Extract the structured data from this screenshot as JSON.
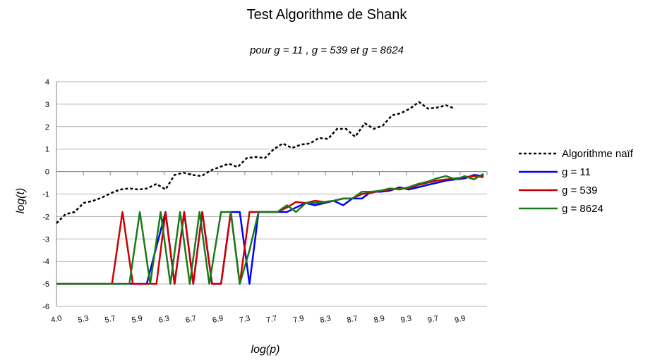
{
  "chart_data": {
    "type": "line",
    "title": "Test Algorithme de Shank",
    "subtitle": "pour g = 11 , g = 539 et g = 8624",
    "xlabel": "log(p)",
    "ylabel": "log(t)",
    "ylim": [
      -6,
      4
    ],
    "yticks": [
      "-6",
      "-5",
      "-4",
      "-3",
      "-2",
      "-1",
      "0",
      "1",
      "2",
      "3",
      "4"
    ],
    "xlim": [
      4.0,
      10.2
    ],
    "xticks": [
      "4.0",
      "5.3",
      "5.7",
      "5.9",
      "6.3",
      "6.7",
      "6.9",
      "7.3",
      "7.7",
      "7.9",
      "8.3",
      "8.7",
      "8.9",
      "9.3",
      "9.7",
      "9.9"
    ],
    "grid": true,
    "legend_position": "right",
    "series": [
      {
        "name": "Algorithme naïf",
        "color": "#000000",
        "dash": true,
        "x": [
          4.0,
          4.13,
          4.26,
          4.39,
          4.53,
          4.66,
          4.79,
          4.92,
          5.05,
          5.18,
          5.31,
          5.44,
          5.57,
          5.7,
          5.83,
          5.96,
          6.09,
          6.22,
          6.35,
          6.48,
          6.61,
          6.74,
          6.87,
          7.0,
          7.13,
          7.26,
          7.39,
          7.52,
          7.65,
          7.78,
          7.91,
          8.04,
          8.17,
          8.3,
          8.44,
          8.57,
          8.7,
          8.83,
          8.96,
          9.09,
          9.22,
          9.35,
          9.48,
          9.61,
          9.74
        ],
        "y": [
          -2.3,
          -1.9,
          -1.8,
          -1.4,
          -1.3,
          -1.15,
          -0.95,
          -0.8,
          -0.75,
          -0.8,
          -0.75,
          -0.55,
          -0.8,
          -0.15,
          -0.05,
          -0.15,
          -0.2,
          0.05,
          0.2,
          0.35,
          0.2,
          0.6,
          0.65,
          0.6,
          1.0,
          1.25,
          1.05,
          1.2,
          1.25,
          1.5,
          1.45,
          1.9,
          1.9,
          1.55,
          2.15,
          1.9,
          2.05,
          2.5,
          2.6,
          2.8,
          3.1,
          2.8,
          2.85,
          2.95,
          2.8
        ]
      },
      {
        "name": "g = 11",
        "color": "#0000ff",
        "dash": false,
        "x": [
          4.0,
          4.27,
          4.55,
          4.8,
          5.05,
          5.3,
          5.57,
          5.7,
          5.84,
          5.97,
          6.1,
          6.24,
          6.37,
          6.51,
          6.64,
          6.78,
          6.91,
          7.05,
          7.18,
          7.32,
          7.45,
          7.59,
          7.72,
          7.86,
          7.99,
          8.13,
          8.26,
          8.4,
          8.53,
          8.67,
          8.8,
          8.94,
          9.07,
          9.21,
          9.34,
          9.48,
          9.61,
          9.75,
          9.88,
          10.01,
          10.15
        ],
        "y": [
          -5,
          -5,
          -5,
          -5,
          -5,
          -5,
          -1.8,
          -5,
          -1.8,
          -5,
          -1.8,
          -5,
          -5,
          -1.8,
          -1.8,
          -5,
          -1.8,
          -1.8,
          -1.8,
          -1.8,
          -1.6,
          -1.4,
          -1.5,
          -1.4,
          -1.3,
          -1.5,
          -1.2,
          -1.2,
          -0.9,
          -0.9,
          -0.85,
          -0.7,
          -0.8,
          -0.7,
          -0.6,
          -0.5,
          -0.4,
          -0.35,
          -0.3,
          -0.15,
          -0.2
        ]
      },
      {
        "name": "g = 539",
        "color": "#cc0000",
        "dash": false,
        "x": [
          4.0,
          4.27,
          4.55,
          4.8,
          4.95,
          5.1,
          5.3,
          5.44,
          5.57,
          5.7,
          5.84,
          5.97,
          6.1,
          6.24,
          6.37,
          6.51,
          6.64,
          6.78,
          6.91,
          7.05,
          7.18,
          7.32,
          7.45,
          7.59,
          7.72,
          7.86,
          7.99,
          8.13,
          8.26,
          8.4,
          8.53,
          8.67,
          8.8,
          8.94,
          9.07,
          9.21,
          9.34,
          9.48,
          9.61,
          9.75,
          9.88,
          10.01,
          10.15
        ],
        "y": [
          -5,
          -5,
          -5,
          -5,
          -1.8,
          -5,
          -5,
          -5,
          -1.8,
          -5,
          -1.8,
          -5,
          -1.8,
          -5,
          -5,
          -1.8,
          -5,
          -1.8,
          -1.8,
          -1.8,
          -1.8,
          -1.6,
          -1.35,
          -1.4,
          -1.3,
          -1.35,
          -1.3,
          -1.2,
          -1.2,
          -1.0,
          -0.95,
          -0.85,
          -0.8,
          -0.75,
          -0.75,
          -0.6,
          -0.5,
          -0.4,
          -0.35,
          -0.3,
          -0.25,
          -0.2,
          -0.25
        ]
      },
      {
        "name": "g = 8624",
        "color": "#1a7a1a",
        "dash": false,
        "x": [
          4.0,
          4.27,
          4.55,
          4.8,
          5.05,
          5.2,
          5.35,
          5.5,
          5.64,
          5.78,
          5.92,
          6.06,
          6.2,
          6.37,
          6.51,
          6.64,
          6.78,
          6.91,
          7.05,
          7.18,
          7.32,
          7.45,
          7.59,
          7.72,
          7.86,
          7.99,
          8.13,
          8.26,
          8.4,
          8.53,
          8.67,
          8.8,
          8.94,
          9.07,
          9.21,
          9.34,
          9.48,
          9.61,
          9.75,
          9.88,
          10.01,
          10.15
        ],
        "y": [
          -5,
          -5,
          -5,
          -5,
          -5,
          -1.8,
          -5,
          -1.8,
          -5,
          -1.8,
          -5,
          -1.8,
          -5,
          -1.8,
          -1.8,
          -5,
          -3.5,
          -1.8,
          -1.8,
          -1.8,
          -1.5,
          -1.8,
          -1.4,
          -1.4,
          -1.35,
          -1.3,
          -1.2,
          -1.2,
          -0.9,
          -0.9,
          -0.85,
          -0.75,
          -0.8,
          -0.7,
          -0.55,
          -0.45,
          -0.3,
          -0.2,
          -0.35,
          -0.2,
          -0.35,
          -0.1
        ]
      }
    ]
  }
}
